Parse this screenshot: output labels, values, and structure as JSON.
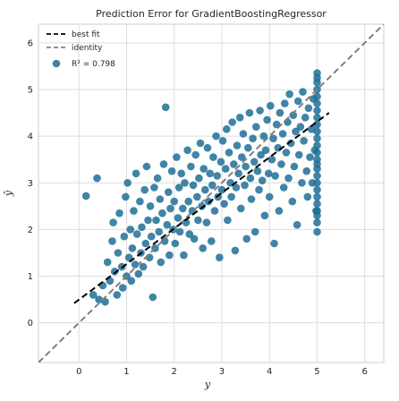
{
  "chart_data": {
    "type": "scatter",
    "title": "Prediction Error for GradientBoostingRegressor",
    "xlabel": "y",
    "ylabel": "ŷ",
    "xlim": [
      -0.85,
      6.4
    ],
    "ylim": [
      -0.85,
      6.4
    ],
    "xticks": [
      0,
      1,
      2,
      3,
      4,
      5,
      6
    ],
    "yticks": [
      0,
      1,
      2,
      3,
      4,
      5,
      6
    ],
    "grid": true,
    "legend_position": "top-left",
    "legend": [
      {
        "label": "best fit",
        "style": "dashed",
        "color": "#000000"
      },
      {
        "label": "identity",
        "style": "dashed",
        "color": "#808080"
      },
      {
        "label": "R² = 0.798",
        "style": "marker",
        "color": "#1f6f97"
      }
    ],
    "best_fit": {
      "x": [
        -0.1,
        5.25
      ],
      "y": [
        0.42,
        4.5
      ]
    },
    "identity": {
      "x": [
        -0.85,
        6.4
      ],
      "y": [
        -0.85,
        6.4
      ]
    },
    "points_color": "#1f6f97",
    "points": [
      [
        0.15,
        2.72
      ],
      [
        0.38,
        3.1
      ],
      [
        0.3,
        0.6
      ],
      [
        0.42,
        0.5
      ],
      [
        0.5,
        0.8
      ],
      [
        0.55,
        0.45
      ],
      [
        0.6,
        1.3
      ],
      [
        0.65,
        0.9
      ],
      [
        0.7,
        1.75
      ],
      [
        0.72,
        2.15
      ],
      [
        0.75,
        1.1
      ],
      [
        0.8,
        0.6
      ],
      [
        0.82,
        1.5
      ],
      [
        0.85,
        2.35
      ],
      [
        0.9,
        1.2
      ],
      [
        0.92,
        0.75
      ],
      [
        0.95,
        1.85
      ],
      [
        0.98,
        2.7
      ],
      [
        1.0,
        1.0
      ],
      [
        1.02,
        3.0
      ],
      [
        1.05,
        1.4
      ],
      [
        1.08,
        2.0
      ],
      [
        1.1,
        0.9
      ],
      [
        1.12,
        1.6
      ],
      [
        1.15,
        2.4
      ],
      [
        1.18,
        1.25
      ],
      [
        1.2,
        3.2
      ],
      [
        1.22,
        1.9
      ],
      [
        1.25,
        1.05
      ],
      [
        1.28,
        2.6
      ],
      [
        1.3,
        1.5
      ],
      [
        1.32,
        2.05
      ],
      [
        1.35,
        1.2
      ],
      [
        1.38,
        2.85
      ],
      [
        1.4,
        1.7
      ],
      [
        1.42,
        3.35
      ],
      [
        1.45,
        2.2
      ],
      [
        1.48,
        1.4
      ],
      [
        1.5,
        2.5
      ],
      [
        1.52,
        1.85
      ],
      [
        1.55,
        0.55
      ],
      [
        1.58,
        2.9
      ],
      [
        1.6,
        1.6
      ],
      [
        1.62,
        2.2
      ],
      [
        1.65,
        3.1
      ],
      [
        1.68,
        1.95
      ],
      [
        1.7,
        2.65
      ],
      [
        1.72,
        1.3
      ],
      [
        1.75,
        2.35
      ],
      [
        1.78,
        3.4
      ],
      [
        1.8,
        1.75
      ],
      [
        1.82,
        4.62
      ],
      [
        1.85,
        2.1
      ],
      [
        1.88,
        2.8
      ],
      [
        1.9,
        1.45
      ],
      [
        1.92,
        2.45
      ],
      [
        1.95,
        3.25
      ],
      [
        1.98,
        2.0
      ],
      [
        2.0,
        2.6
      ],
      [
        2.02,
        1.7
      ],
      [
        2.05,
        3.55
      ],
      [
        2.08,
        2.25
      ],
      [
        2.1,
        2.9
      ],
      [
        2.12,
        1.95
      ],
      [
        2.15,
        3.2
      ],
      [
        2.18,
        2.45
      ],
      [
        2.2,
        1.45
      ],
      [
        2.22,
        3.0
      ],
      [
        2.25,
        2.15
      ],
      [
        2.28,
        3.7
      ],
      [
        2.3,
        2.6
      ],
      [
        2.32,
        1.9
      ],
      [
        2.35,
        3.35
      ],
      [
        2.38,
        2.4
      ],
      [
        2.4,
        2.95
      ],
      [
        2.42,
        1.8
      ],
      [
        2.45,
        3.6
      ],
      [
        2.48,
        2.7
      ],
      [
        2.5,
        2.2
      ],
      [
        2.52,
        3.1
      ],
      [
        2.55,
        3.85
      ],
      [
        2.58,
        2.5
      ],
      [
        2.6,
        1.6
      ],
      [
        2.62,
        3.3
      ],
      [
        2.65,
        2.85
      ],
      [
        2.68,
        2.15
      ],
      [
        2.7,
        3.75
      ],
      [
        2.72,
        2.6
      ],
      [
        2.75,
        3.2
      ],
      [
        2.78,
        1.75
      ],
      [
        2.8,
        2.95
      ],
      [
        2.82,
        3.55
      ],
      [
        2.85,
        2.4
      ],
      [
        2.88,
        4.0
      ],
      [
        2.9,
        3.15
      ],
      [
        2.92,
        2.7
      ],
      [
        2.95,
        1.4
      ],
      [
        2.98,
        3.45
      ],
      [
        3.0,
        2.85
      ],
      [
        3.02,
        3.9
      ],
      [
        3.05,
        2.55
      ],
      [
        3.08,
        3.3
      ],
      [
        3.1,
        4.15
      ],
      [
        3.12,
        2.2
      ],
      [
        3.15,
        3.65
      ],
      [
        3.18,
        3.0
      ],
      [
        3.2,
        2.7
      ],
      [
        3.22,
        4.3
      ],
      [
        3.25,
        3.4
      ],
      [
        3.28,
        1.55
      ],
      [
        3.3,
        2.9
      ],
      [
        3.32,
        3.8
      ],
      [
        3.35,
        3.2
      ],
      [
        3.38,
        4.4
      ],
      [
        3.4,
        2.45
      ],
      [
        3.42,
        3.55
      ],
      [
        3.45,
        4.05
      ],
      [
        3.48,
        2.95
      ],
      [
        3.5,
        3.35
      ],
      [
        3.52,
        1.8
      ],
      [
        3.55,
        3.75
      ],
      [
        3.58,
        4.5
      ],
      [
        3.6,
        3.1
      ],
      [
        3.62,
        2.65
      ],
      [
        3.65,
        3.95
      ],
      [
        3.68,
        3.45
      ],
      [
        3.7,
        1.95
      ],
      [
        3.72,
        4.2
      ],
      [
        3.75,
        3.25
      ],
      [
        3.78,
        2.85
      ],
      [
        3.8,
        4.55
      ],
      [
        3.82,
        3.6
      ],
      [
        3.85,
        3.05
      ],
      [
        3.88,
        4.0
      ],
      [
        3.9,
        2.3
      ],
      [
        3.92,
        3.7
      ],
      [
        3.95,
        4.35
      ],
      [
        3.98,
        3.2
      ],
      [
        4.0,
        2.7
      ],
      [
        4.02,
        4.65
      ],
      [
        4.05,
        3.5
      ],
      [
        4.08,
        3.95
      ],
      [
        4.1,
        1.7
      ],
      [
        4.12,
        3.15
      ],
      [
        4.15,
        4.25
      ],
      [
        4.18,
        3.75
      ],
      [
        4.2,
        2.4
      ],
      [
        4.22,
        4.5
      ],
      [
        4.25,
        3.4
      ],
      [
        4.28,
        4.05
      ],
      [
        4.3,
        2.9
      ],
      [
        4.32,
        4.7
      ],
      [
        4.35,
        3.65
      ],
      [
        4.38,
        4.3
      ],
      [
        4.4,
        3.1
      ],
      [
        4.42,
        4.9
      ],
      [
        4.45,
        3.85
      ],
      [
        4.48,
        2.6
      ],
      [
        4.5,
        4.45
      ],
      [
        4.52,
        3.35
      ],
      [
        4.55,
        4.1
      ],
      [
        4.58,
        2.1
      ],
      [
        4.6,
        4.75
      ],
      [
        4.62,
        3.6
      ],
      [
        4.65,
        4.2
      ],
      [
        4.68,
        3.0
      ],
      [
        4.7,
        4.95
      ],
      [
        4.72,
        3.9
      ],
      [
        4.75,
        4.4
      ],
      [
        4.78,
        3.25
      ],
      [
        4.8,
        2.7
      ],
      [
        4.82,
        4.6
      ],
      [
        4.85,
        3.55
      ],
      [
        4.88,
        4.15
      ],
      [
        4.9,
        3.0
      ],
      [
        4.92,
        4.8
      ],
      [
        4.95,
        3.7
      ],
      [
        4.98,
        2.4
      ],
      [
        5.0,
        5.35
      ],
      [
        5.0,
        5.25
      ],
      [
        5.0,
        5.15
      ],
      [
        5.0,
        5.0
      ],
      [
        5.0,
        4.85
      ],
      [
        5.0,
        4.7
      ],
      [
        5.0,
        4.55
      ],
      [
        5.0,
        4.4
      ],
      [
        5.0,
        4.25
      ],
      [
        5.0,
        4.1
      ],
      [
        5.0,
        3.95
      ],
      [
        5.0,
        3.8
      ],
      [
        5.0,
        3.65
      ],
      [
        5.0,
        3.5
      ],
      [
        5.0,
        3.4
      ],
      [
        5.0,
        3.3
      ],
      [
        5.0,
        3.15
      ],
      [
        5.0,
        3.0
      ],
      [
        5.0,
        2.85
      ],
      [
        5.0,
        2.7
      ],
      [
        5.0,
        2.55
      ],
      [
        5.0,
        2.4
      ],
      [
        5.0,
        2.3
      ],
      [
        5.0,
        2.15
      ],
      [
        5.0,
        1.95
      ]
    ]
  }
}
